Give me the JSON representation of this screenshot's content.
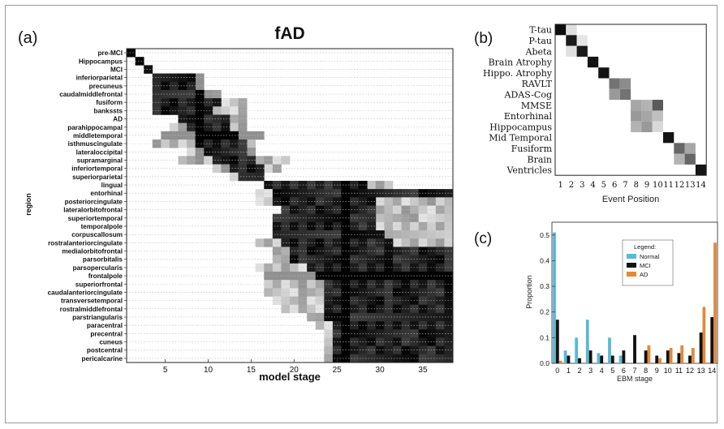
{
  "chart_data": [
    {
      "panel": "(a)",
      "type": "heatmap",
      "title": "fAD",
      "xlabel": "model stage",
      "ylabel": "region",
      "xticks": [
        5,
        10,
        15,
        20,
        25,
        30,
        35
      ],
      "xlim": [
        1,
        38
      ],
      "regions": [
        "pre-MCI",
        "Hippocampus",
        "MCI",
        "inferiorparietal",
        "precuneus",
        "caudalmiddlefrontal",
        "fusiform",
        "bankssts",
        "AD",
        "parahippocampal",
        "middletemporal",
        "isthmuscingulate",
        "lateraloccipital",
        "supramarginal",
        "inferiortemporal",
        "superiorparietal",
        "lingual",
        "entorhinal",
        "posteriorcingulate",
        "lateralorbitofrontal",
        "superiortemporal",
        "temporalpole",
        "corpuscallosum",
        "rostralanteriorcingulate",
        "medialorbitofrontal",
        "parsorbitalis",
        "parsopercularis",
        "frontalpole",
        "superiorfrontal",
        "caudalanteriorcingulate",
        "transversetemporal",
        "rostralmiddlefrontal",
        "parstriangularis",
        "paracentral",
        "precentral",
        "cuneus",
        "postcentral",
        "pericalcarine"
      ],
      "row_profiles": [
        {
          "main": [
            1,
            1
          ],
          "faint": []
        },
        {
          "main": [
            2,
            2
          ],
          "faint": []
        },
        {
          "main": [
            3,
            3
          ],
          "faint": []
        },
        {
          "main": [
            4,
            8
          ],
          "faint": [
            [
              9,
              9
            ]
          ]
        },
        {
          "main": [
            4,
            8
          ],
          "faint": [
            [
              9,
              9
            ]
          ]
        },
        {
          "main": [
            4,
            9
          ],
          "faint": [
            [
              10,
              11
            ]
          ]
        },
        {
          "main": [
            4,
            11
          ],
          "faint": [
            [
              12,
              14
            ]
          ]
        },
        {
          "main": [
            4,
            10
          ],
          "faint": [
            [
              11,
              14
            ]
          ]
        },
        {
          "main": [
            7,
            12
          ],
          "faint": [
            [
              13,
              14
            ]
          ]
        },
        {
          "main": [
            8,
            12
          ],
          "faint": [
            [
              6,
              7
            ],
            [
              13,
              14
            ]
          ]
        },
        {
          "main": [
            9,
            13
          ],
          "faint": [
            [
              5,
              8
            ],
            [
              14,
              16
            ]
          ]
        },
        {
          "main": [
            9,
            14
          ],
          "faint": [
            [
              4,
              8
            ],
            [
              15,
              15
            ]
          ]
        },
        {
          "main": [
            10,
            14
          ],
          "faint": [
            [
              8,
              9
            ],
            [
              15,
              15
            ]
          ]
        },
        {
          "main": [
            11,
            15
          ],
          "faint": [
            [
              7,
              10
            ],
            [
              16,
              19
            ]
          ]
        },
        {
          "main": [
            13,
            16
          ],
          "faint": [
            [
              11,
              12
            ],
            [
              17,
              18
            ]
          ]
        },
        {
          "main": [
            14,
            16
          ],
          "faint": [
            [
              13,
              13
            ]
          ]
        },
        {
          "main": [
            17,
            28
          ],
          "faint": [
            [
              29,
              31
            ]
          ]
        },
        {
          "main": [
            18,
            38
          ],
          "faint": [
            [
              16,
              17
            ]
          ]
        },
        {
          "main": [
            18,
            29
          ],
          "faint": [
            [
              16,
              17
            ],
            [
              30,
              38
            ]
          ]
        },
        {
          "main": [
            19,
            29
          ],
          "faint": [
            [
              30,
              38
            ]
          ]
        },
        {
          "main": [
            18,
            29
          ],
          "faint": [
            [
              30,
              38
            ]
          ]
        },
        {
          "main": [
            18,
            29
          ],
          "faint": [
            [
              30,
              38
            ]
          ]
        },
        {
          "main": [
            18,
            30
          ],
          "faint": [
            [
              31,
              38
            ]
          ]
        },
        {
          "main": [
            19,
            31
          ],
          "faint": [
            [
              16,
              18
            ],
            [
              32,
              38
            ]
          ]
        },
        {
          "main": [
            20,
            38
          ],
          "faint": [
            [
              18,
              19
            ]
          ]
        },
        {
          "main": [
            20,
            38
          ],
          "faint": [
            [
              18,
              19
            ]
          ]
        },
        {
          "main": [
            22,
            38
          ],
          "faint": [
            [
              16,
              21
            ]
          ]
        },
        {
          "main": [
            23,
            38
          ],
          "faint": [
            [
              17,
              22
            ]
          ]
        },
        {
          "main": [
            24,
            38
          ],
          "faint": [
            [
              17,
              23
            ]
          ]
        },
        {
          "main": [
            24,
            38
          ],
          "faint": [
            [
              17,
              23
            ]
          ]
        },
        {
          "main": [
            24,
            38
          ],
          "faint": [
            [
              18,
              23
            ]
          ]
        },
        {
          "main": [
            24,
            38
          ],
          "faint": [
            [
              19,
              23
            ]
          ]
        },
        {
          "main": [
            24,
            38
          ],
          "faint": [
            [
              22,
              23
            ]
          ]
        },
        {
          "main": [
            25,
            38
          ],
          "faint": [
            [
              23,
              24
            ]
          ]
        },
        {
          "main": [
            25,
            38
          ],
          "faint": [
            [
              24,
              24
            ]
          ]
        },
        {
          "main": [
            25,
            38
          ],
          "faint": [
            [
              24,
              24
            ]
          ]
        },
        {
          "main": [
            25,
            38
          ],
          "faint": [
            [
              24,
              24
            ]
          ]
        },
        {
          "main": [
            25,
            38
          ],
          "faint": [
            [
              24,
              24
            ]
          ]
        }
      ]
    },
    {
      "panel": "(b)",
      "type": "heatmap",
      "xlabel": "Event Position",
      "xticks": [
        "1",
        "2",
        "3",
        "4",
        "5",
        "6",
        "7",
        "8",
        "9",
        "10",
        "11",
        "12",
        "13",
        "14"
      ],
      "events": [
        "T-tau",
        "P-tau",
        "Abeta",
        "Brain Atrophy",
        "Hippo. Atrophy",
        "RAVLT",
        "ADAS-Cog",
        "MMSE",
        "Entorhinal",
        "Hippocampus",
        "Mid Temporal",
        "Fusiform",
        "Brain",
        "Ventricles"
      ],
      "cells": [
        [
          0,
          0,
          0.95
        ],
        [
          0,
          1,
          0.12
        ],
        [
          1,
          1,
          0.9
        ],
        [
          1,
          2,
          0.1
        ],
        [
          2,
          1,
          0.12
        ],
        [
          2,
          2,
          0.9
        ],
        [
          3,
          3,
          0.92
        ],
        [
          4,
          4,
          0.92
        ],
        [
          5,
          5,
          0.55
        ],
        [
          5,
          6,
          0.45
        ],
        [
          6,
          5,
          0.4
        ],
        [
          6,
          6,
          0.55
        ],
        [
          7,
          7,
          0.35
        ],
        [
          7,
          8,
          0.3
        ],
        [
          7,
          9,
          0.65
        ],
        [
          8,
          7,
          0.4
        ],
        [
          8,
          8,
          0.35
        ],
        [
          8,
          9,
          0.25
        ],
        [
          9,
          7,
          0.3
        ],
        [
          9,
          8,
          0.4
        ],
        [
          9,
          9,
          0.15
        ],
        [
          10,
          10,
          0.92
        ],
        [
          11,
          11,
          0.6
        ],
        [
          11,
          12,
          0.35
        ],
        [
          12,
          11,
          0.3
        ],
        [
          12,
          12,
          0.6
        ],
        [
          13,
          13,
          0.92
        ]
      ]
    },
    {
      "panel": "(c)",
      "type": "bar",
      "xlabel": "EBM stage",
      "ylabel": "Proportion",
      "ylim": [
        0,
        0.55
      ],
      "yticks": [
        0.0,
        0.1,
        0.2,
        0.3,
        0.4,
        0.5
      ],
      "categories": [
        "0",
        "1",
        "2",
        "3",
        "4",
        "5",
        "6",
        "7",
        "8",
        "9",
        "10",
        "11",
        "12",
        "13",
        "14"
      ],
      "legend_title": "Legend:",
      "legend_position": "upper right",
      "series": [
        {
          "name": "Normal",
          "color": "#5bb8d6",
          "values": [
            0.51,
            0.05,
            0.1,
            0.17,
            0.04,
            0.1,
            0.03,
            0.0,
            0.0,
            0.0,
            0.0,
            0.0,
            0.0,
            0.0,
            0.0
          ]
        },
        {
          "name": "MCI",
          "color": "#111111",
          "values": [
            0.17,
            0.03,
            0.02,
            0.05,
            0.03,
            0.03,
            0.05,
            0.11,
            0.05,
            0.03,
            0.05,
            0.04,
            0.03,
            0.12,
            0.18
          ]
        },
        {
          "name": "AD",
          "color": "#e08a3c",
          "values": [
            0.01,
            0.0,
            0.0,
            0.0,
            0.0,
            0.0,
            0.0,
            0.0,
            0.07,
            0.02,
            0.06,
            0.07,
            0.06,
            0.22,
            0.47
          ]
        }
      ]
    }
  ]
}
